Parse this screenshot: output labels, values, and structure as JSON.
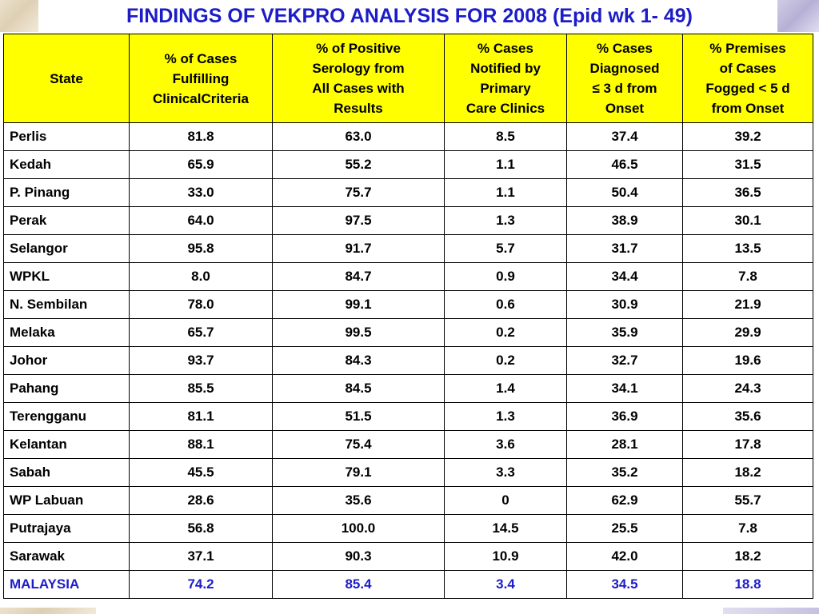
{
  "title": "FINDINGS OF VEKPRO ANALYSIS FOR 2008 (Epid wk 1- 49)",
  "table": {
    "headers": [
      "State",
      "% of Cases\nFulfilling\nClinicalCriteria",
      "% of Positive\nSerology from\nAll Cases with\nResults",
      "% Cases\nNotified by\nPrimary\nCare Clinics",
      "% Cases\nDiagnosed\n≤ 3 d from\nOnset",
      "% Premises\nof Cases\nFogged  < 5 d\nfrom Onset"
    ],
    "rows": [
      [
        "Perlis",
        "81.8",
        "63.0",
        "8.5",
        "37.4",
        "39.2"
      ],
      [
        "Kedah",
        "65.9",
        "55.2",
        "1.1",
        "46.5",
        "31.5"
      ],
      [
        "P. Pinang",
        "33.0",
        "75.7",
        "1.1",
        "50.4",
        "36.5"
      ],
      [
        "Perak",
        "64.0",
        "97.5",
        "1.3",
        "38.9",
        "30.1"
      ],
      [
        "Selangor",
        "95.8",
        "91.7",
        "5.7",
        "31.7",
        "13.5"
      ],
      [
        "WPKL",
        "8.0",
        "84.7",
        "0.9",
        "34.4",
        "7.8"
      ],
      [
        "N. Sembilan",
        "78.0",
        "99.1",
        "0.6",
        "30.9",
        "21.9"
      ],
      [
        "Melaka",
        "65.7",
        "99.5",
        "0.2",
        "35.9",
        "29.9"
      ],
      [
        "Johor",
        "93.7",
        "84.3",
        "0.2",
        "32.7",
        "19.6"
      ],
      [
        "Pahang",
        "85.5",
        "84.5",
        "1.4",
        "34.1",
        "24.3"
      ],
      [
        "Terengganu",
        "81.1",
        "51.5",
        "1.3",
        "36.9",
        "35.6"
      ],
      [
        "Kelantan",
        "88.1",
        "75.4",
        "3.6",
        "28.1",
        "17.8"
      ],
      [
        "Sabah",
        "45.5",
        "79.1",
        "3.3",
        "35.2",
        "18.2"
      ],
      [
        "WP Labuan",
        "28.6",
        "35.6",
        "0",
        "62.9",
        "55.7"
      ],
      [
        "Putrajaya",
        "56.8",
        "100.0",
        "14.5",
        "25.5",
        "7.8"
      ],
      [
        "Sarawak",
        "37.1",
        "90.3",
        "10.9",
        "42.0",
        "18.2"
      ]
    ],
    "total": [
      "MALAYSIA",
      "74.2",
      "85.4",
      "3.4",
      "34.5",
      "18.8"
    ]
  },
  "colors": {
    "title": "#1c1cc8",
    "header_bg": "#ffff00",
    "total_text": "#1c1cc8",
    "border": "#000000"
  }
}
